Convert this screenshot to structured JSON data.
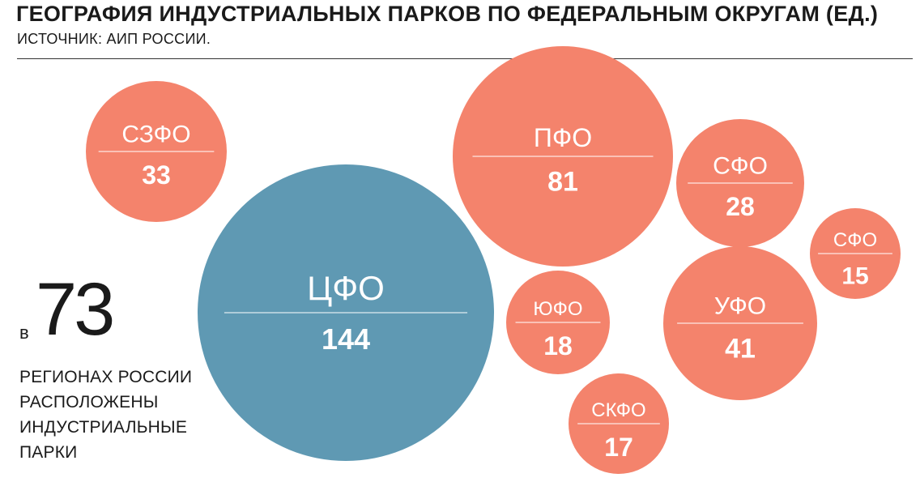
{
  "header": {
    "title": "ГЕОГРАФИЯ ИНДУСТРИАЛЬНЫХ ПАРКОВ ПО ФЕДЕРАЛЬНЫМ ОКРУГАМ (ЕД.)",
    "source": "ИСТОЧНИК: АИП РОССИИ."
  },
  "stat": {
    "prefix": "в",
    "number": "73",
    "text_lines": [
      "РЕГИОНАХ РОССИИ",
      "РАСПОЛОЖЕНЫ",
      "ИНДУСТРИАЛЬНЫЕ",
      "ПАРКИ"
    ]
  },
  "colors": {
    "highlight": "#5f99b3",
    "default": "#f4836c",
    "text_dark": "#1a1a1a"
  },
  "chart_data": {
    "type": "bubble",
    "title": "ГЕОГРАФИЯ ИНДУСТРИАЛЬНЫХ ПАРКОВ ПО ФЕДЕРАЛЬНЫМ ОКРУГАМ (ЕД.)",
    "unit": "ЕД.",
    "items": [
      {
        "label": "СЗФО",
        "value": "33",
        "highlight": false
      },
      {
        "label": "ЦФО",
        "value": "144",
        "highlight": true
      },
      {
        "label": "ПФО",
        "value": "81",
        "highlight": false
      },
      {
        "label": "СФО",
        "value": "28",
        "highlight": false
      },
      {
        "label": "СФО",
        "value": "15",
        "highlight": false
      },
      {
        "label": "ЮФО",
        "value": "18",
        "highlight": false
      },
      {
        "label": "УФО",
        "value": "41",
        "highlight": false
      },
      {
        "label": "СКФО",
        "value": "17",
        "highlight": false
      }
    ]
  }
}
